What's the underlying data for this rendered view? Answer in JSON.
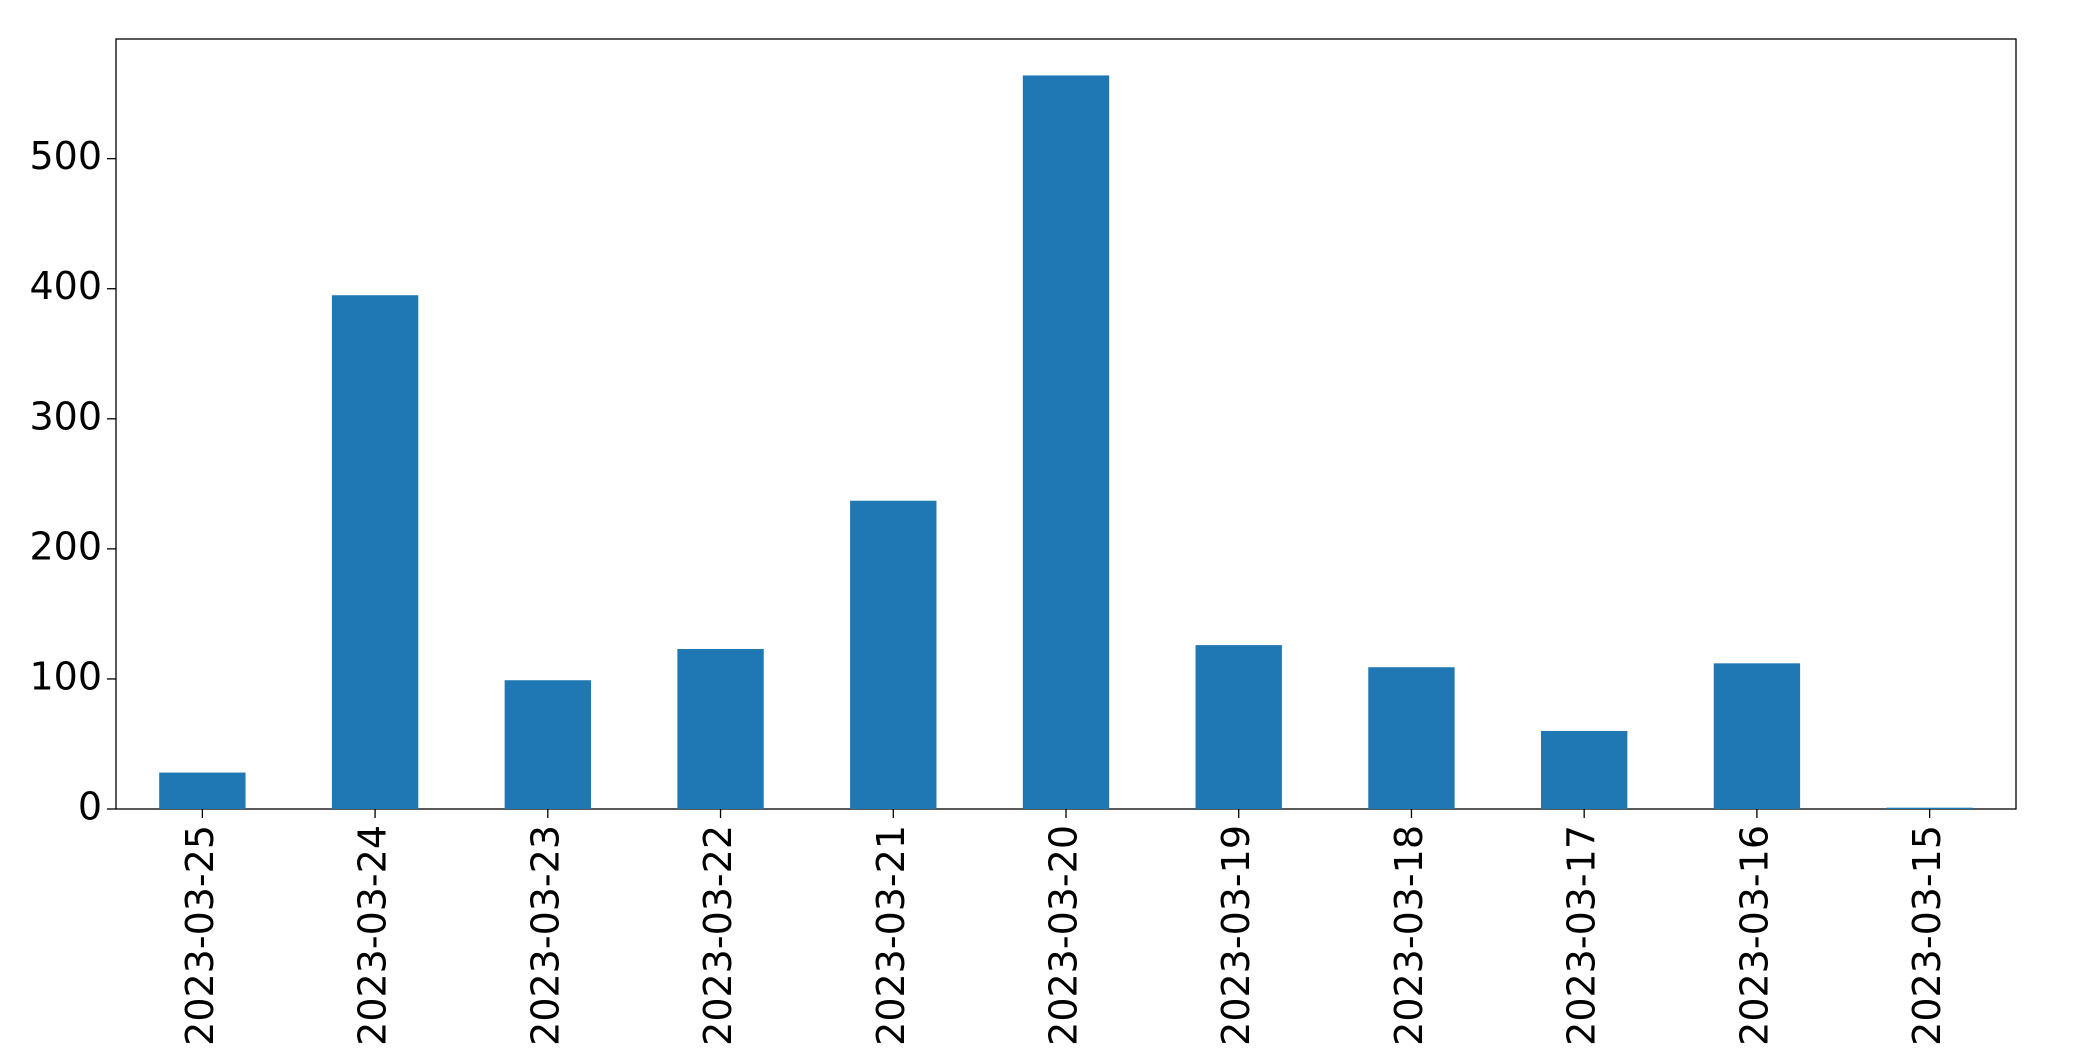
{
  "chart_data": {
    "type": "bar",
    "categories": [
      "2023-03-25",
      "2023-03-24",
      "2023-03-23",
      "2023-03-22",
      "2023-03-21",
      "2023-03-20",
      "2023-03-19",
      "2023-03-18",
      "2023-03-17",
      "2023-03-16",
      "2023-03-15"
    ],
    "values": [
      28,
      395,
      99,
      123,
      237,
      564,
      126,
      109,
      60,
      112,
      1
    ],
    "color": "#1f77b4",
    "ylim": [
      0,
      592
    ],
    "yticks": [
      0,
      100,
      200,
      300,
      400,
      500
    ],
    "grid": false
  }
}
